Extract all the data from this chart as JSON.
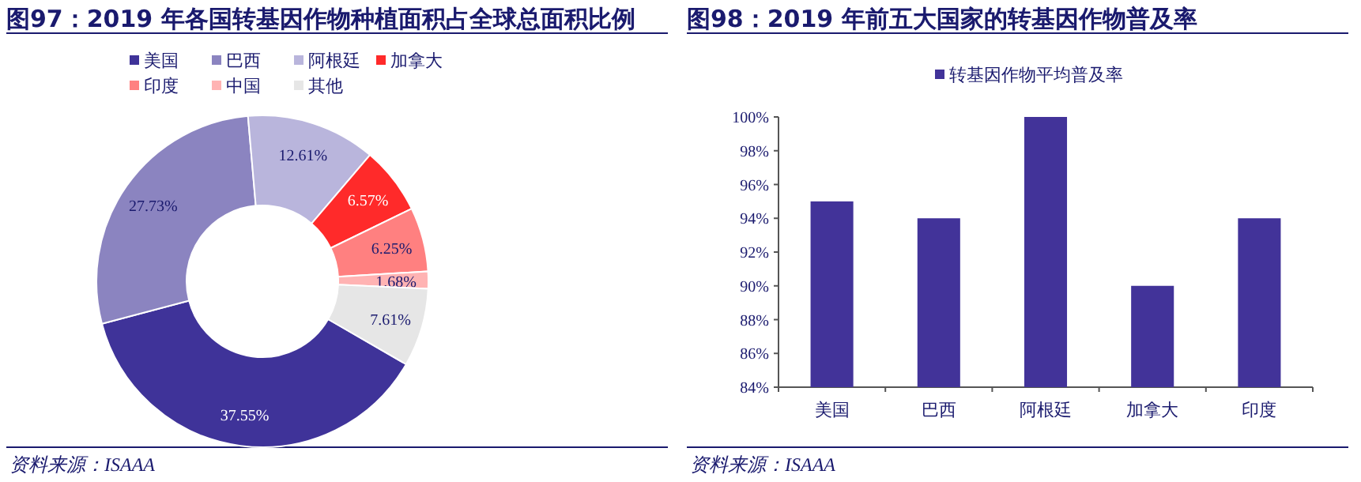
{
  "chart_data": [
    {
      "type": "donut",
      "title": "图97：2019 年各国转基因作物种植面积占全球总面积比例",
      "categories": [
        "美国",
        "巴西",
        "阿根廷",
        "加拿大",
        "印度",
        "中国",
        "其他"
      ],
      "values": [
        37.55,
        27.73,
        12.61,
        6.57,
        6.25,
        1.68,
        7.61
      ],
      "value_labels": [
        "37.55%",
        "27.73%",
        "12.61%",
        "6.57%",
        "6.25%",
        "1.68%",
        "7.61%"
      ],
      "colors": [
        "#3f3399",
        "#8b84c0",
        "#b9b5dc",
        "#ff2a2a",
        "#ff8080",
        "#ffb3b3",
        "#e6e6e6"
      ],
      "legend": "top",
      "annotations": [
        "资料来源：ISAAA"
      ]
    },
    {
      "type": "bar",
      "title": "图98：2019 年前五大国家的转基因作物普及率",
      "categories": [
        "美国",
        "巴西",
        "阿根廷",
        "加拿大",
        "印度"
      ],
      "series": [
        {
          "name": "转基因作物平均普及率",
          "color": "#423399",
          "values": [
            95,
            94,
            100,
            90,
            94
          ]
        }
      ],
      "ylim": [
        84,
        100
      ],
      "yticks": [
        {
          "value": 84,
          "label": "84%"
        },
        {
          "value": 86,
          "label": "86%"
        },
        {
          "value": 88,
          "label": "88%"
        },
        {
          "value": 90,
          "label": "90%"
        },
        {
          "value": 92,
          "label": "92%"
        },
        {
          "value": 94,
          "label": "94%"
        },
        {
          "value": 96,
          "label": "96%"
        },
        {
          "value": 98,
          "label": "98%"
        },
        {
          "value": 100,
          "label": "100%"
        }
      ],
      "legend": "top",
      "annotations": [
        "资料来源：ISAAA"
      ]
    }
  ]
}
